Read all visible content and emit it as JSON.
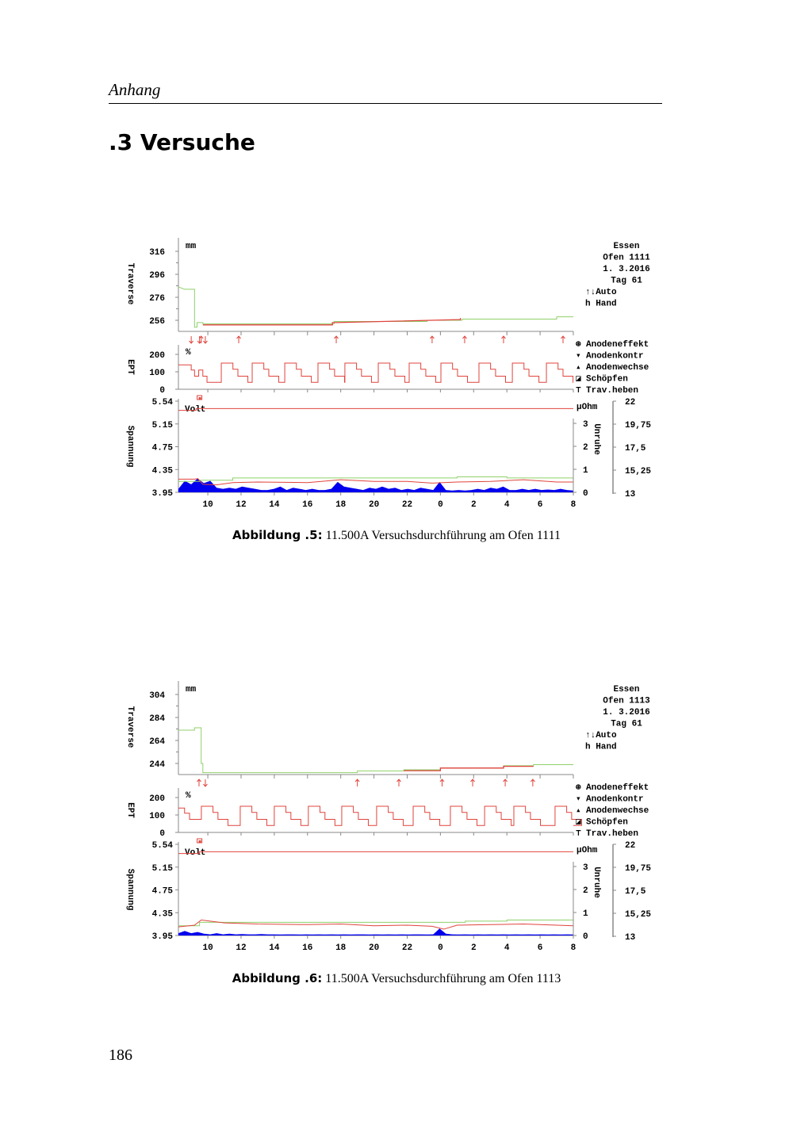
{
  "header": {
    "running_head": "Anhang",
    "section_title": ".3 Versuche"
  },
  "page_number": "186",
  "figures": [
    {
      "caption_label": "Abbildung .5:",
      "caption_text": " 11.500A Versuchsdurchführung am Ofen 1111"
    },
    {
      "caption_label": "Abbildung .6:",
      "caption_text": " 11.500A Versuchsdurchführung am Ofen 1113"
    }
  ],
  "colors": {
    "green": "#8fd16a",
    "red": "#e0443c",
    "blue": "#0000ee",
    "axis": "#888888"
  },
  "chart_data": [
    {
      "type": "line",
      "info": [
        "Essen",
        "Ofen  1111",
        "1. 3.2016",
        "Tag  61",
        "↑↓Auto",
        "h Hand"
      ],
      "legend": [
        {
          "symbol": "⊛",
          "label": "Anodeneffekt"
        },
        {
          "symbol": "▾",
          "label": "Anodenkontr"
        },
        {
          "symbol": "▴",
          "label": "Anodenwechse"
        },
        {
          "symbol": "◪",
          "label": "Schöpfen"
        },
        {
          "symbol": "⊤",
          "label": "Trav.heben"
        }
      ],
      "x_ticks": [
        "10",
        "12",
        "14",
        "16",
        "18",
        "20",
        "22",
        "0",
        "2",
        "4",
        "6",
        "8"
      ],
      "x_tick_hours": [
        10,
        12,
        14,
        16,
        18,
        20,
        22,
        24,
        26,
        28,
        30,
        32
      ],
      "xlim": [
        8.23,
        32
      ],
      "traverse": {
        "ylabel": "Traverse",
        "unit": "mm",
        "ticks": [
          "316",
          "296",
          "276",
          "256"
        ],
        "tick_values": [
          316,
          296,
          276,
          256
        ],
        "green": [
          [
            8.23,
            285
          ],
          [
            8.6,
            283
          ],
          [
            9.2,
            283
          ],
          [
            9.2,
            250
          ],
          [
            9.35,
            250
          ],
          [
            9.35,
            254
          ],
          [
            9.7,
            254
          ],
          [
            9.7,
            253
          ],
          [
            17.6,
            253
          ],
          [
            17.6,
            255
          ],
          [
            23.2,
            255
          ],
          [
            23.2,
            256
          ],
          [
            25.3,
            256
          ],
          [
            25.3,
            257
          ],
          [
            31,
            257
          ],
          [
            31,
            259
          ],
          [
            32,
            259
          ]
        ],
        "red": [
          [
            9.7,
            252
          ],
          [
            17.5,
            252
          ],
          [
            17.5,
            254
          ],
          [
            17.7,
            254
          ],
          [
            24.9,
            256.5
          ],
          [
            25.2,
            256.5
          ],
          [
            25.2,
            258
          ]
        ]
      },
      "arrows": {
        "down": [
          9.0,
          9.5,
          9.85
        ],
        "up": [
          9.6,
          11.86,
          17.73,
          23.5,
          25.46,
          27.8,
          31.38
        ]
      },
      "ept": {
        "ylabel": "EPT",
        "unit": "%",
        "ticks": [
          "200",
          "100",
          "0"
        ],
        "tick_values": [
          200,
          100,
          0
        ],
        "start": [
          [
            8.23,
            140
          ],
          [
            9.0,
            110
          ],
          [
            9.2,
            75
          ],
          [
            9.45,
            110
          ],
          [
            9.7,
            75
          ],
          [
            9.95,
            40
          ]
        ],
        "cycle_starts": [
          10.81,
          12.67,
          14.63,
          16.63,
          18.25,
          20.26,
          22.12,
          24.03,
          26.32,
          28.33,
          30.38
        ],
        "cycle_profile": [
          [
            150,
            0.7
          ],
          [
            115,
            0.3
          ],
          [
            75,
            0.6
          ],
          [
            40,
            0.3
          ]
        ]
      },
      "spannung": {
        "ylabel": "Spannung",
        "unit": "Volt",
        "ticks": [
          "5.54",
          "5.15",
          "4.75",
          "4.35",
          "3.95"
        ],
        "ylim": [
          3.95,
          5.54
        ],
        "right_unit": "µOhm",
        "right_label": "Unruhe",
        "unruhe_ticks": [
          "3",
          "2",
          "1",
          "0"
        ],
        "ohm_ticks": [
          "22",
          "19,75",
          "17,5",
          "15,25",
          "13"
        ],
        "volt_line": [
          [
            8.23,
            5.38
          ],
          [
            9.3,
            5.38
          ],
          [
            9.3,
            5.41
          ],
          [
            32,
            5.41
          ]
        ],
        "red_line": [
          [
            8.23,
            4.18
          ],
          [
            9.2,
            4.18
          ],
          [
            9.4,
            4.19
          ],
          [
            9.7,
            4.09
          ],
          [
            10.5,
            4.08
          ],
          [
            11.5,
            4.12
          ],
          [
            13,
            4.13
          ],
          [
            16,
            4.12
          ],
          [
            18,
            4.17
          ],
          [
            20,
            4.14
          ],
          [
            22,
            4.14
          ],
          [
            23.5,
            4.11
          ],
          [
            25,
            4.13
          ],
          [
            27,
            4.14
          ],
          [
            29,
            4.17
          ],
          [
            31,
            4.13
          ],
          [
            32,
            4.13
          ]
        ],
        "green_line": [
          [
            8.23,
            4.14
          ],
          [
            9.5,
            4.14
          ],
          [
            9.5,
            4.16
          ],
          [
            11.5,
            4.16
          ],
          [
            11.5,
            4.2
          ],
          [
            25,
            4.2
          ],
          [
            25,
            4.22
          ],
          [
            28,
            4.22
          ],
          [
            28,
            4.2
          ],
          [
            32,
            4.2
          ]
        ],
        "unruhe": [
          0.15,
          0.5,
          0.35,
          0.6,
          0.4,
          0.5,
          0.2,
          0.15,
          0.2,
          0.15,
          0.25,
          0.2,
          0.15,
          0.1,
          0.1,
          0.15,
          0.25,
          0.1,
          0.2,
          0.15,
          0.1,
          0.15,
          0.1,
          0.1,
          0.15,
          0.45,
          0.25,
          0.2,
          0.15,
          0.1,
          0.2,
          0.15,
          0.25,
          0.15,
          0.2,
          0.1,
          0.15,
          0.1,
          0.2,
          0.15,
          0.1,
          0.45,
          0.1,
          0.08,
          0.1,
          0.08,
          0.1,
          0.15,
          0.1,
          0.2,
          0.15,
          0.25,
          0.1,
          0.1,
          0.15,
          0.1,
          0.15,
          0.1,
          0.12,
          0.1,
          0.15,
          0.1,
          0.08
        ]
      }
    },
    {
      "type": "line",
      "info": [
        "Essen",
        "Ofen  1113",
        "1. 3.2016",
        "Tag  61",
        "↑↓Auto",
        "h Hand"
      ],
      "legend": [
        {
          "symbol": "⊛",
          "label": "Anodeneffekt"
        },
        {
          "symbol": "▾",
          "label": "Anodenkontr"
        },
        {
          "symbol": "▴",
          "label": "Anodenwechse"
        },
        {
          "symbol": "◪",
          "label": "Schöpfen"
        },
        {
          "symbol": "⊤",
          "label": "Trav.heben"
        }
      ],
      "x_ticks": [
        "10",
        "12",
        "14",
        "16",
        "18",
        "20",
        "22",
        "0",
        "2",
        "4",
        "6",
        "8"
      ],
      "x_tick_hours": [
        10,
        12,
        14,
        16,
        18,
        20,
        22,
        24,
        26,
        28,
        30,
        32
      ],
      "xlim": [
        8.23,
        32
      ],
      "traverse": {
        "ylabel": "Traverse",
        "unit": "mm",
        "ticks": [
          "304",
          "284",
          "264",
          "244"
        ],
        "tick_values": [
          304,
          284,
          264,
          244
        ],
        "green": [
          [
            8.23,
            273
          ],
          [
            9.2,
            273
          ],
          [
            9.2,
            275
          ],
          [
            9.6,
            275
          ],
          [
            9.6,
            244
          ],
          [
            9.7,
            244
          ],
          [
            9.7,
            236
          ],
          [
            19.0,
            236
          ],
          [
            19.0,
            237.5
          ],
          [
            21.8,
            237.5
          ],
          [
            21.8,
            238.5
          ],
          [
            24.0,
            238.5
          ],
          [
            24.0,
            240
          ],
          [
            27.8,
            240
          ],
          [
            27.8,
            242
          ],
          [
            29.6,
            242
          ],
          [
            29.6,
            243
          ],
          [
            32,
            243
          ]
        ],
        "red": [
          [
            21.8,
            237.7
          ],
          [
            24.0,
            237.7
          ],
          [
            24.0,
            240
          ],
          [
            27.8,
            240
          ],
          [
            27.8,
            241.5
          ],
          [
            29.6,
            241.5
          ]
        ]
      },
      "arrows": {
        "down": [
          9.85
        ],
        "up": [
          9.47,
          19.0,
          21.5,
          24.1,
          25.94,
          27.9,
          29.56
        ]
      },
      "ept": {
        "ylabel": "EPT",
        "unit": "%",
        "ticks": [
          "200",
          "100",
          "0"
        ],
        "tick_values": [
          200,
          100,
          0
        ],
        "start": [
          [
            8.23,
            140
          ],
          [
            8.6,
            110
          ],
          [
            8.9,
            75
          ]
        ],
        "cycle_starts": [
          9.61,
          11.95,
          14.0,
          16.05,
          18.06,
          20.16,
          22.36,
          24.6,
          26.66,
          28.42,
          30.9
        ],
        "cycle_profile": [
          [
            150,
            0.7
          ],
          [
            115,
            0.3
          ],
          [
            75,
            0.6
          ],
          [
            40,
            0.3
          ]
        ]
      },
      "spannung": {
        "ylabel": "Spannung",
        "unit": "Volt",
        "ticks": [
          "5.54",
          "5.15",
          "4.75",
          "4.35",
          "3.95"
        ],
        "ylim": [
          3.95,
          5.54
        ],
        "right_unit": "µOhm",
        "right_label": "Unruhe",
        "unruhe_ticks": [
          "3",
          "2",
          "1",
          "0"
        ],
        "ohm_ticks": [
          "22",
          "19,75",
          "17,5",
          "15,25",
          "13"
        ],
        "volt_line": [
          [
            8.23,
            5.38
          ],
          [
            9.5,
            5.38
          ],
          [
            9.5,
            5.41
          ],
          [
            32,
            5.41
          ]
        ],
        "red_line": [
          [
            8.23,
            4.1
          ],
          [
            9.2,
            4.13
          ],
          [
            9.6,
            4.22
          ],
          [
            11,
            4.17
          ],
          [
            13,
            4.15
          ],
          [
            16,
            4.14
          ],
          [
            18,
            4.15
          ],
          [
            20,
            4.12
          ],
          [
            22,
            4.13
          ],
          [
            23.5,
            4.11
          ],
          [
            24.2,
            4.06
          ],
          [
            25,
            4.13
          ],
          [
            27,
            4.14
          ],
          [
            29,
            4.15
          ],
          [
            31,
            4.13
          ],
          [
            32,
            4.12
          ]
        ],
        "green_line": [
          [
            8.23,
            4.12
          ],
          [
            9.5,
            4.12
          ],
          [
            9.5,
            4.18
          ],
          [
            25.5,
            4.18
          ],
          [
            25.5,
            4.2
          ],
          [
            28,
            4.2
          ],
          [
            28,
            4.22
          ],
          [
            32,
            4.22
          ]
        ],
        "unruhe": [
          0.1,
          0.2,
          0.1,
          0.15,
          0.08,
          0.05,
          0.1,
          0.05,
          0.08,
          0.05,
          0.06,
          0.05,
          0.05,
          0.06,
          0.05,
          0.05,
          0.04,
          0.05,
          0.05,
          0.04,
          0.05,
          0.04,
          0.05,
          0.04,
          0.05,
          0.04,
          0.05,
          0.04,
          0.05,
          0.05,
          0.04,
          0.05,
          0.04,
          0.05,
          0.04,
          0.05,
          0.04,
          0.05,
          0.05,
          0.04,
          0.05,
          0.3,
          0.08,
          0.05,
          0.04,
          0.05,
          0.04,
          0.05,
          0.04,
          0.05,
          0.04,
          0.05,
          0.04,
          0.05,
          0.04,
          0.05,
          0.04,
          0.05,
          0.04,
          0.05,
          0.04,
          0.05,
          0.04
        ]
      }
    }
  ]
}
